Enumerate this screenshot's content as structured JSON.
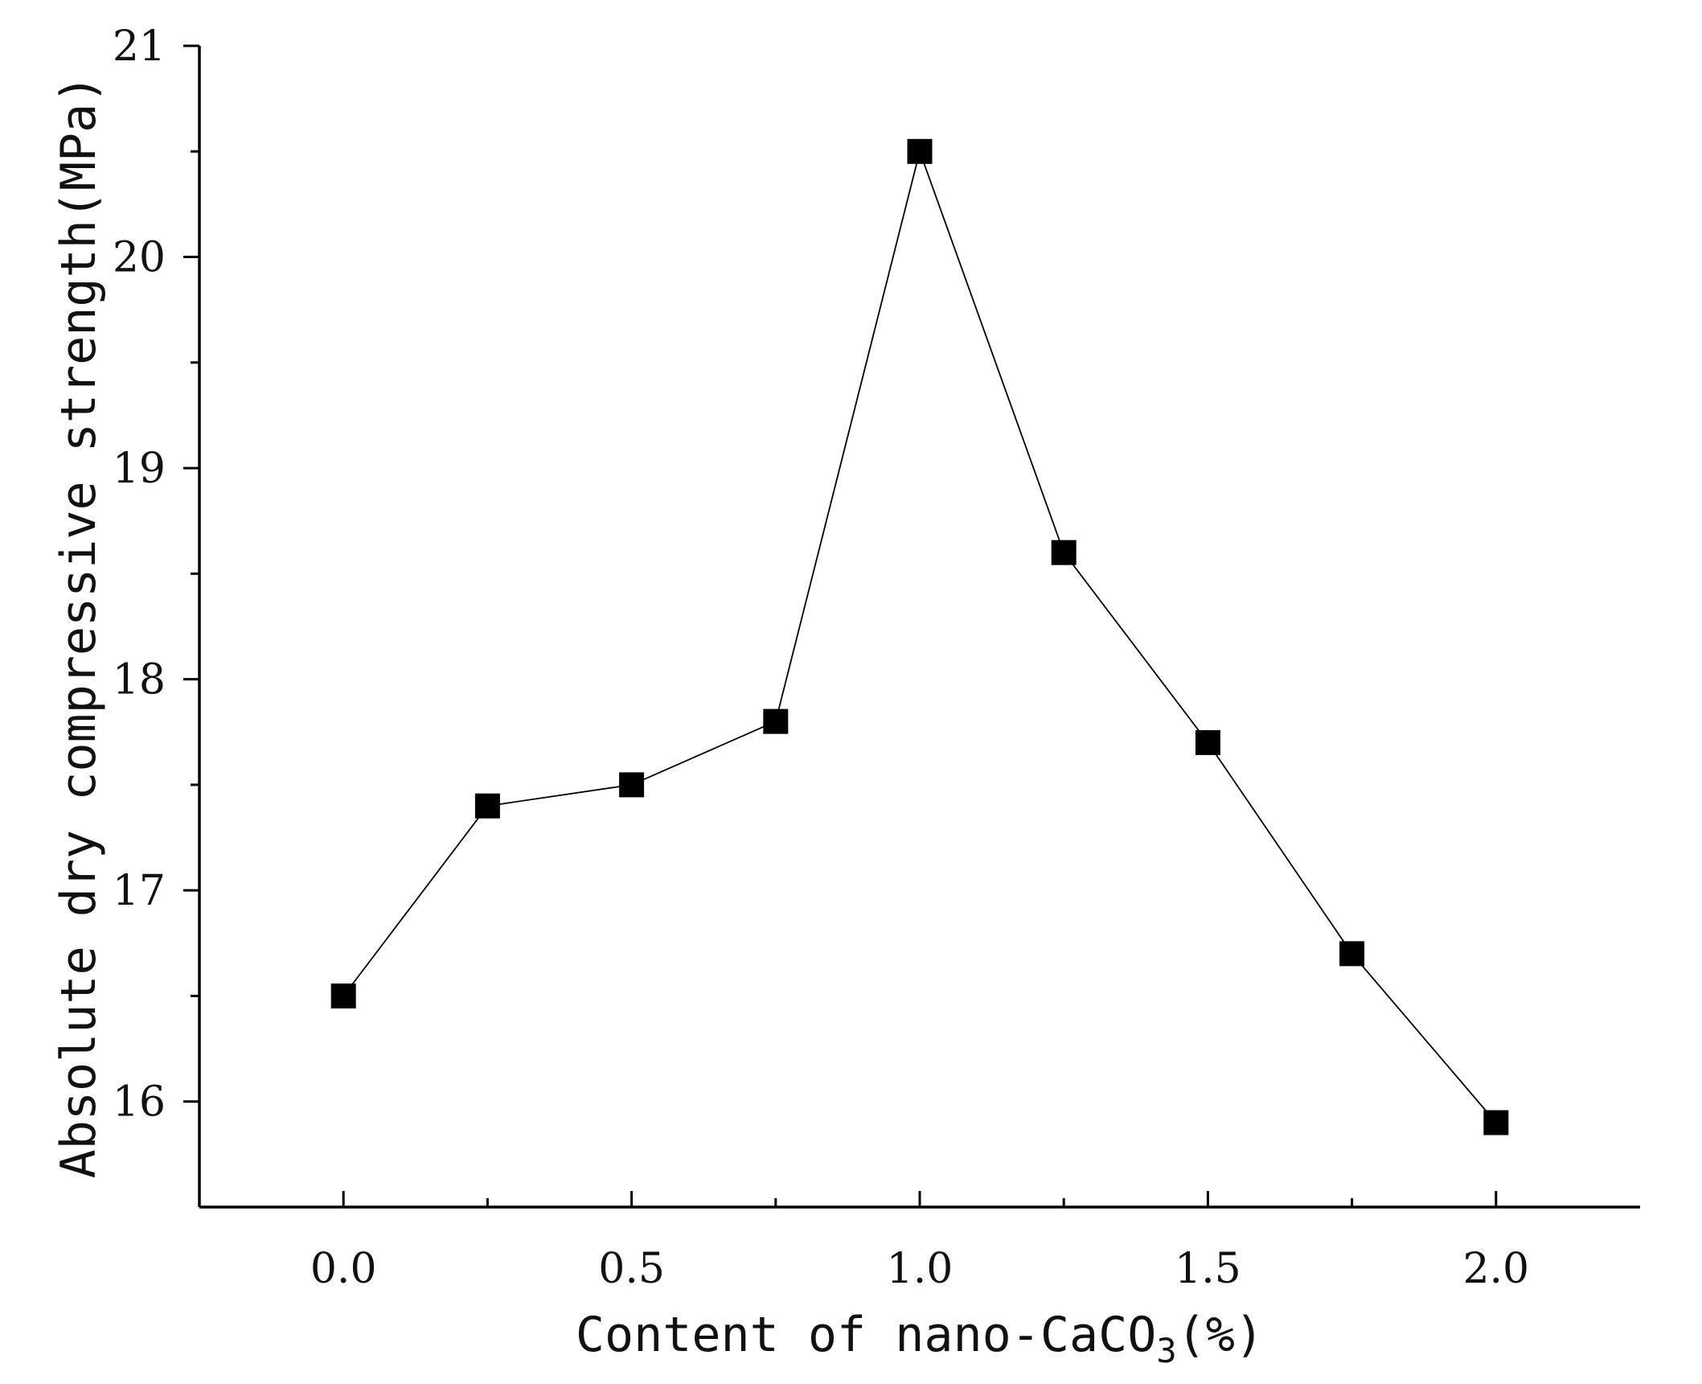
{
  "chart_data": {
    "type": "line",
    "title": "",
    "xlabel": {
      "prefix": "Content of nano-CaCO",
      "subscript": "3",
      "suffix": "(%)"
    },
    "ylabel": "Absolute dry compressive strength(MPa)",
    "xlim": [
      -0.25,
      2.25
    ],
    "ylim": [
      15.5,
      21
    ],
    "x_ticks": [
      0.0,
      0.5,
      1.0,
      1.5,
      2.0
    ],
    "x_tick_labels": [
      "0.0",
      "0.5",
      "1.0",
      "1.5",
      "2.0"
    ],
    "x_minor_ticks": [
      0.25,
      0.75,
      1.25,
      1.75
    ],
    "y_ticks": [
      16,
      17,
      18,
      19,
      20,
      21
    ],
    "y_tick_labels": [
      "16",
      "17",
      "18",
      "19",
      "20",
      "21"
    ],
    "y_minor_ticks": [
      16.5,
      17.5,
      18.5,
      19.5,
      20.5
    ],
    "grid": false,
    "legend": "none",
    "marker": "square",
    "series": [
      {
        "x": [
          0.0,
          0.25,
          0.5,
          0.75,
          1.0,
          1.25,
          1.5,
          1.75,
          2.0
        ],
        "values": [
          16.5,
          17.4,
          17.5,
          17.8,
          20.5,
          18.6,
          17.7,
          16.7,
          15.9
        ],
        "color": "#000000"
      }
    ]
  }
}
